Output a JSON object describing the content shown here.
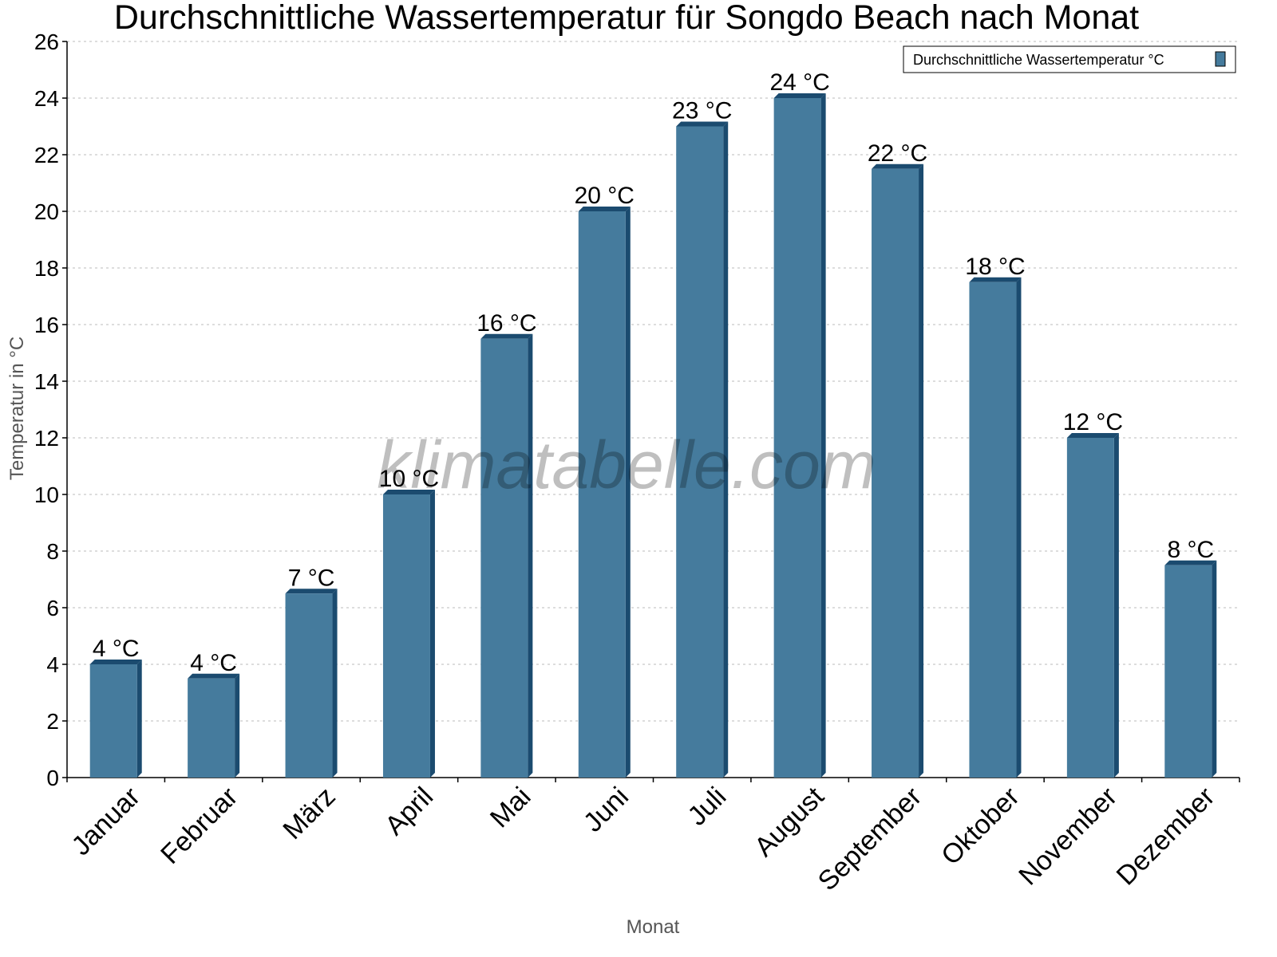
{
  "chart_data": {
    "type": "bar",
    "title": "Durchschnittliche Wassertemperatur für Songdo Beach nach Monat",
    "xlabel": "Monat",
    "ylabel": "Temperatur in °C",
    "ylim": [
      0,
      26
    ],
    "yticks": [
      0,
      2,
      4,
      6,
      8,
      10,
      12,
      14,
      16,
      18,
      20,
      22,
      24,
      26
    ],
    "grid": true,
    "legend_position": "top-right",
    "categories": [
      "Januar",
      "Februar",
      "März",
      "April",
      "Mai",
      "Juni",
      "Juli",
      "August",
      "September",
      "Oktober",
      "November",
      "Dezember"
    ],
    "series": [
      {
        "name": "Durchschnittliche Wassertemperatur °C",
        "color": "#457b9d",
        "side_color": "#1b4b6f",
        "values": [
          4,
          3.5,
          6.5,
          10,
          15.5,
          20,
          23,
          24,
          21.5,
          17.5,
          12,
          7.5
        ],
        "labels": [
          "4 °C",
          "4 °C",
          "7 °C",
          "10 °C",
          "16 °C",
          "20 °C",
          "23 °C",
          "24 °C",
          "22 °C",
          "18 °C",
          "12 °C",
          "8 °C"
        ]
      }
    ],
    "watermark": "klimatabelle.com"
  }
}
